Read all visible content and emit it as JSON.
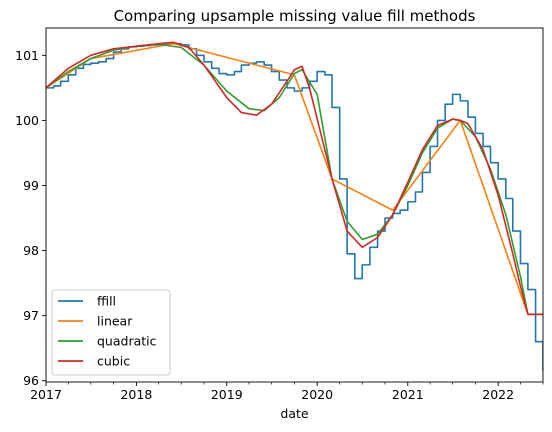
{
  "chart_data": {
    "type": "line",
    "title": "Comparing upsample missing value fill methods",
    "xlabel": "date",
    "ylabel": "",
    "xlim": [
      "2017-01-01",
      "2022-07-01"
    ],
    "ylim": [
      95.98,
      101.42
    ],
    "x_ticks": [
      "2017",
      "2018",
      "2019",
      "2020",
      "2021",
      "2022"
    ],
    "y_ticks": [
      "96",
      "97",
      "98",
      "99",
      "100",
      "101"
    ],
    "grid": false,
    "legend_position": "lower-left",
    "series": [
      {
        "name": "ffill",
        "color": "#1f77b4",
        "style": "step",
        "x": [
          "2017-01-01",
          "2017-02-01",
          "2017-03-01",
          "2017-04-01",
          "2017-05-01",
          "2017-06-01",
          "2017-07-01",
          "2017-08-01",
          "2017-09-01",
          "2017-10-01",
          "2017-11-01",
          "2017-12-01",
          "2018-01-01",
          "2018-02-01",
          "2018-03-01",
          "2018-04-01",
          "2018-05-01",
          "2018-06-01",
          "2018-07-01",
          "2018-08-01",
          "2018-09-01",
          "2018-10-01",
          "2018-11-01",
          "2018-12-01",
          "2019-01-01",
          "2019-02-01",
          "2019-03-01",
          "2019-04-01",
          "2019-05-01",
          "2019-06-01",
          "2019-07-01",
          "2019-08-01",
          "2019-09-01",
          "2019-10-01",
          "2019-11-01",
          "2019-12-01",
          "2020-01-01",
          "2020-02-01",
          "2020-03-01",
          "2020-04-01",
          "2020-05-01",
          "2020-06-01",
          "2020-07-01",
          "2020-08-01",
          "2020-09-01",
          "2020-10-01",
          "2020-11-01",
          "2020-12-01",
          "2021-01-01",
          "2021-02-01",
          "2021-03-01",
          "2021-04-01",
          "2021-05-01",
          "2021-06-01",
          "2021-07-01",
          "2021-08-01",
          "2021-09-01",
          "2021-10-01",
          "2021-11-01",
          "2021-12-01",
          "2022-01-01",
          "2022-02-01",
          "2022-03-01",
          "2022-04-01",
          "2022-05-01",
          "2022-06-01",
          "2022-07-01"
        ],
        "y": [
          100.5,
          100.53,
          100.6,
          100.7,
          100.8,
          100.86,
          100.88,
          100.9,
          100.95,
          101.05,
          101.1,
          101.13,
          101.14,
          101.15,
          101.16,
          101.17,
          101.18,
          101.18,
          101.16,
          101.1,
          101.0,
          100.9,
          100.8,
          100.72,
          100.7,
          100.75,
          100.85,
          100.88,
          100.9,
          100.85,
          100.75,
          100.62,
          100.5,
          100.45,
          100.5,
          100.6,
          100.75,
          100.7,
          100.2,
          99.1,
          97.95,
          97.57,
          97.78,
          98.05,
          98.3,
          98.5,
          98.57,
          98.62,
          98.75,
          98.9,
          99.2,
          99.6,
          100.0,
          100.25,
          100.4,
          100.3,
          100.05,
          99.8,
          99.6,
          99.35,
          99.1,
          98.8,
          98.3,
          97.8,
          97.4,
          96.6,
          96.15
        ]
      },
      {
        "name": "linear",
        "color": "#ff7f0e",
        "style": "line",
        "x": [
          "2017-01-01",
          "2017-07-01",
          "2018-06-01",
          "2019-10-01",
          "2020-03-01",
          "2020-11-01",
          "2021-08-01",
          "2022-05-01",
          "2022-07-01"
        ],
        "y": [
          100.5,
          100.95,
          101.18,
          100.7,
          99.1,
          98.62,
          100.0,
          97.02,
          97.02
        ]
      },
      {
        "name": "quadratic",
        "color": "#2ca02c",
        "style": "line",
        "x": [
          "2017-01-01",
          "2017-04-01",
          "2017-07-01",
          "2017-10-01",
          "2018-01-01",
          "2018-04-01",
          "2018-07-01",
          "2018-10-01",
          "2019-01-01",
          "2019-04-01",
          "2019-06-01",
          "2019-08-01",
          "2019-10-01",
          "2019-11-01",
          "2020-01-01",
          "2020-03-01",
          "2020-05-01",
          "2020-07-01",
          "2020-09-01",
          "2020-11-01",
          "2021-01-01",
          "2021-03-01",
          "2021-05-01",
          "2021-07-01",
          "2021-08-01",
          "2021-10-01",
          "2021-12-01",
          "2022-02-01",
          "2022-04-01",
          "2022-05-01",
          "2022-07-01"
        ],
        "y": [
          100.5,
          100.75,
          100.95,
          101.08,
          101.14,
          101.17,
          101.12,
          100.85,
          100.45,
          100.18,
          100.15,
          100.35,
          100.72,
          100.78,
          100.4,
          99.1,
          98.45,
          98.17,
          98.25,
          98.55,
          99.0,
          99.5,
          99.88,
          100.02,
          100.0,
          99.75,
          99.25,
          98.55,
          97.6,
          97.02,
          97.02
        ]
      },
      {
        "name": "cubic",
        "color": "#d62728",
        "style": "line",
        "x": [
          "2017-01-01",
          "2017-04-01",
          "2017-07-01",
          "2017-10-01",
          "2018-01-01",
          "2018-04-01",
          "2018-06-01",
          "2018-08-01",
          "2018-10-01",
          "2019-01-01",
          "2019-03-01",
          "2019-05-01",
          "2019-07-01",
          "2019-09-01",
          "2019-10-01",
          "2019-11-01",
          "2019-12-01",
          "2020-02-01",
          "2020-03-01",
          "2020-05-01",
          "2020-07-01",
          "2020-09-01",
          "2020-11-01",
          "2021-01-01",
          "2021-03-01",
          "2021-05-01",
          "2021-07-01",
          "2021-08-01",
          "2021-09-01",
          "2021-11-01",
          "2022-01-01",
          "2022-03-01",
          "2022-04-01",
          "2022-05-01",
          "2022-07-01"
        ],
        "y": [
          100.5,
          100.8,
          101.0,
          101.1,
          101.14,
          101.18,
          101.2,
          101.12,
          100.85,
          100.35,
          100.12,
          100.08,
          100.25,
          100.6,
          100.78,
          100.83,
          100.5,
          99.55,
          99.1,
          98.3,
          98.05,
          98.2,
          98.55,
          99.05,
          99.55,
          99.92,
          100.02,
          100.0,
          99.95,
          99.55,
          98.85,
          97.95,
          97.45,
          97.02,
          97.02
        ]
      }
    ]
  }
}
